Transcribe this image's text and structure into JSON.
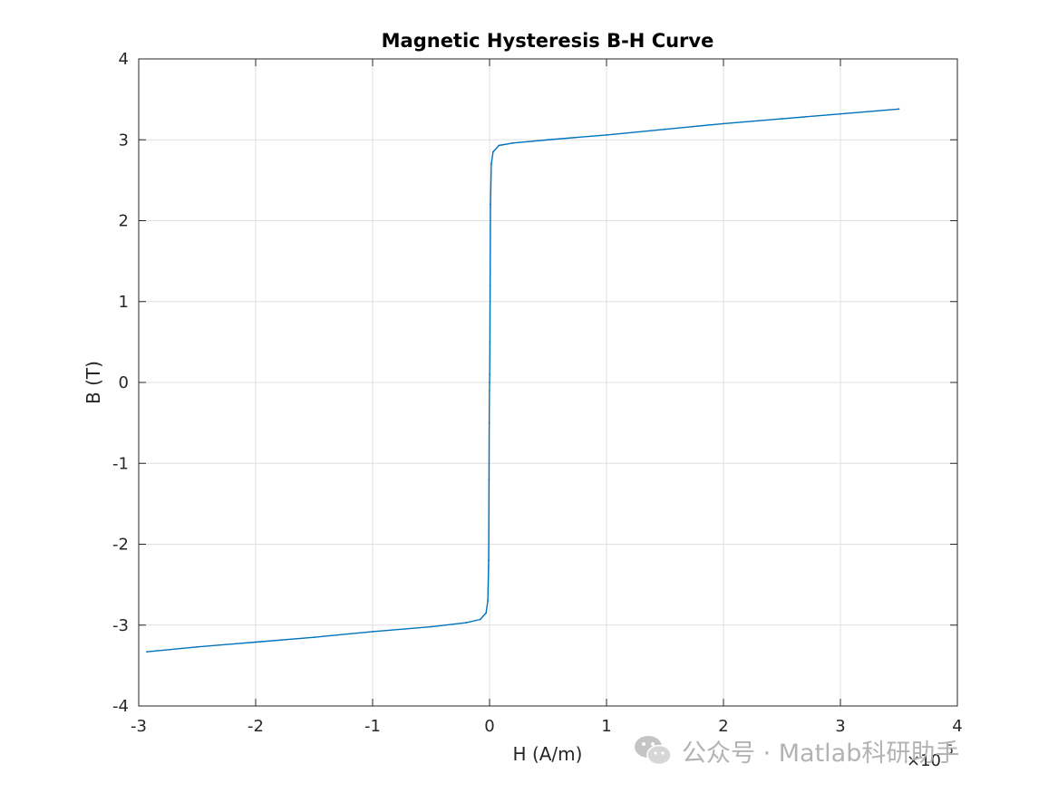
{
  "watermark": {
    "text": "公众号 · Matlab科研助手",
    "logo_icon": "wechat-icon"
  },
  "chart_data": {
    "type": "line",
    "title": "Magnetic Hysteresis B-H Curve",
    "xlabel": "H (A/m)",
    "ylabel": "B (T)",
    "x_exponent_label": "×10",
    "x_exponent_power": "5",
    "xlim": [
      -300000,
      400000
    ],
    "ylim": [
      -4,
      4
    ],
    "xticks": [
      -300000,
      -200000,
      -100000,
      0,
      100000,
      200000,
      300000,
      400000
    ],
    "xtick_labels": [
      "-3",
      "-2",
      "-1",
      "0",
      "1",
      "2",
      "3",
      "4"
    ],
    "yticks": [
      -4,
      -3,
      -2,
      -1,
      0,
      1,
      2,
      3,
      4
    ],
    "ytick_labels": [
      "-4",
      "-3",
      "-2",
      "-1",
      "0",
      "1",
      "2",
      "3",
      "4"
    ],
    "grid": true,
    "line_color": "#0072bd",
    "series": [
      {
        "x": [
          -293000,
          -250000,
          -200000,
          -150000,
          -100000,
          -50000,
          -20000,
          -8000,
          -3000,
          -1500,
          -800,
          -500,
          -300,
          -100,
          0,
          100,
          300,
          500,
          800,
          1500,
          3000,
          8000,
          20000,
          50000,
          100000,
          150000,
          200000,
          250000,
          300000,
          350000
        ],
        "y": [
          -3.33,
          -3.27,
          -3.21,
          -3.15,
          -3.08,
          -3.02,
          -2.97,
          -2.93,
          -2.85,
          -2.7,
          -2.2,
          -1.2,
          -0.5,
          -0.1,
          0,
          0.1,
          0.5,
          1.2,
          2.2,
          2.7,
          2.85,
          2.93,
          2.96,
          3.0,
          3.06,
          3.13,
          3.2,
          3.26,
          3.32,
          3.38
        ]
      }
    ]
  }
}
